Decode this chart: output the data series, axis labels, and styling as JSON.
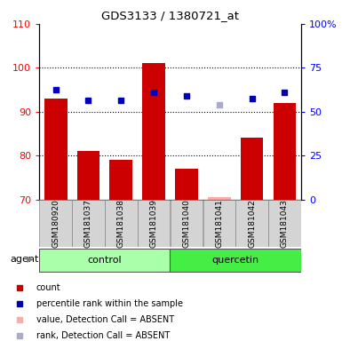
{
  "title": "GDS3133 / 1380721_at",
  "samples": [
    "GSM180920",
    "GSM181037",
    "GSM181038",
    "GSM181039",
    "GSM181040",
    "GSM181041",
    "GSM181042",
    "GSM181043"
  ],
  "bar_values": [
    93,
    81,
    79,
    101,
    77,
    70.5,
    84,
    92
  ],
  "bar_colors": [
    "#cc0000",
    "#cc0000",
    "#cc0000",
    "#cc0000",
    "#cc0000",
    "#ffaaaa",
    "#cc0000",
    "#cc0000"
  ],
  "dot_values_left": [
    95,
    92.5,
    92.5,
    94.5,
    93.5,
    91.5,
    93,
    94.5
  ],
  "dot_colors": [
    "#0000bb",
    "#0000bb",
    "#0000bb",
    "#0000bb",
    "#0000bb",
    "#aaaacc",
    "#0000bb",
    "#0000bb"
  ],
  "ylim_left": [
    70,
    110
  ],
  "ylim_right": [
    0,
    100
  ],
  "yticks_left": [
    70,
    80,
    90,
    100,
    110
  ],
  "yticks_right": [
    0,
    25,
    50,
    75,
    100
  ],
  "ytick_labels_right": [
    "0",
    "25",
    "50",
    "75",
    "100%"
  ],
  "grid_lines": [
    80,
    90,
    100
  ],
  "legend_items": [
    {
      "label": "count",
      "color": "#cc0000"
    },
    {
      "label": "percentile rank within the sample",
      "color": "#0000bb"
    },
    {
      "label": "value, Detection Call = ABSENT",
      "color": "#ffaaaa"
    },
    {
      "label": "rank, Detection Call = ABSENT",
      "color": "#aaaacc"
    }
  ],
  "control_color": "#aaffaa",
  "quercetin_color": "#44ee44",
  "sample_box_color": "#d4d4d4"
}
